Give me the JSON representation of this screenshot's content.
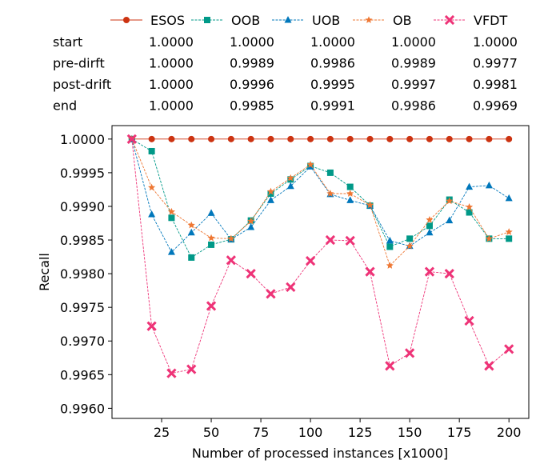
{
  "chart_data": {
    "type": "line",
    "title": "",
    "xlabel": "Number of processed instances [x1000]",
    "ylabel": "Recall",
    "xlim": [
      0,
      210
    ],
    "ylim": [
      0.99585,
      1.0002
    ],
    "xticks": [
      25,
      50,
      75,
      100,
      125,
      150,
      175,
      200
    ],
    "yticks": [
      0.996,
      0.9965,
      0.997,
      0.9975,
      0.998,
      0.9985,
      0.999,
      0.9995,
      1.0
    ],
    "ytick_labels": [
      "0.9960",
      "0.9965",
      "0.9970",
      "0.9975",
      "0.9980",
      "0.9985",
      "0.9990",
      "0.9995",
      "1.0000"
    ],
    "grid": false,
    "legend": "top",
    "x": [
      10,
      20,
      30,
      40,
      50,
      60,
      70,
      80,
      90,
      100,
      110,
      120,
      130,
      140,
      150,
      160,
      170,
      180,
      190,
      200
    ],
    "series": [
      {
        "name": "ESOS",
        "color": "#cc3311",
        "marker": "circle",
        "values": [
          1.0,
          1.0,
          1.0,
          1.0,
          1.0,
          1.0,
          1.0,
          1.0,
          1.0,
          1.0,
          1.0,
          1.0,
          1.0,
          1.0,
          1.0,
          1.0,
          1.0,
          1.0,
          1.0,
          1.0
        ]
      },
      {
        "name": "OOB",
        "color": "#009988",
        "marker": "square",
        "values": [
          1.0,
          0.99982,
          0.99883,
          0.99824,
          0.99843,
          0.99851,
          0.99879,
          0.99919,
          0.9994,
          0.9996,
          0.9995,
          0.99929,
          0.99901,
          0.9984,
          0.99852,
          0.99871,
          0.9991,
          0.99891,
          0.99852,
          0.99852
        ]
      },
      {
        "name": "UOB",
        "color": "#0077bb",
        "marker": "triangle",
        "values": [
          1.0,
          0.99888,
          0.99832,
          0.99861,
          0.9989,
          0.99851,
          0.99869,
          0.99909,
          0.9993,
          0.99959,
          0.99918,
          0.99909,
          0.99901,
          0.99849,
          0.99841,
          0.99861,
          0.99879,
          0.99929,
          0.99931,
          0.99912
        ]
      },
      {
        "name": "OB",
        "color": "#ee7733",
        "marker": "star",
        "values": [
          1.0,
          0.99928,
          0.99892,
          0.99872,
          0.99853,
          0.99852,
          0.99878,
          0.99922,
          0.99942,
          0.99962,
          0.99919,
          0.99919,
          0.99902,
          0.99812,
          0.99841,
          0.9988,
          0.99908,
          0.99899,
          0.99852,
          0.99862
        ]
      },
      {
        "name": "VFDT",
        "color": "#ee3377",
        "marker": "x",
        "values": [
          1.0,
          0.99722,
          0.99652,
          0.99658,
          0.99752,
          0.9982,
          0.998,
          0.9977,
          0.9978,
          0.99819,
          0.9985,
          0.99849,
          0.99803,
          0.99663,
          0.99682,
          0.99803,
          0.998,
          0.9973,
          0.99663,
          0.99688
        ]
      }
    ]
  },
  "table": {
    "rows": [
      {
        "label": "start",
        "values": [
          "1.0000",
          "1.0000",
          "1.0000",
          "1.0000",
          "1.0000"
        ]
      },
      {
        "label": "pre-dirft",
        "values": [
          "1.0000",
          "0.9989",
          "0.9986",
          "0.9989",
          "0.9977"
        ]
      },
      {
        "label": "post-drift",
        "values": [
          "1.0000",
          "0.9996",
          "0.9995",
          "0.9997",
          "0.9981"
        ]
      },
      {
        "label": "end",
        "values": [
          "1.0000",
          "0.9985",
          "0.9991",
          "0.9986",
          "0.9969"
        ]
      }
    ]
  }
}
